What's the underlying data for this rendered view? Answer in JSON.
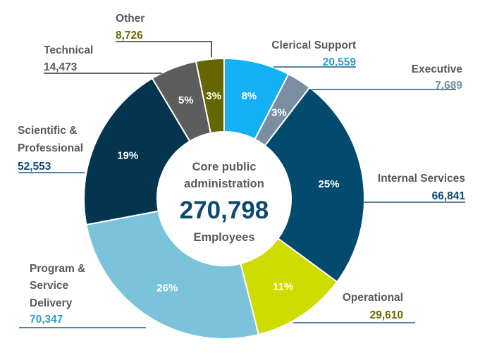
{
  "chart_data": {
    "type": "pie",
    "subtype": "donut",
    "title": "",
    "center": {
      "line1": "Core public",
      "line2": "administration",
      "total": "270,798",
      "line3": "Employees"
    },
    "start": "12 o'clock",
    "direction": "clockwise",
    "slices": [
      {
        "id": "clerical",
        "label": [
          "Clerical Support"
        ],
        "value": 20559,
        "value_text": "20,559",
        "pct_text": "8%",
        "color": "#13b1f4",
        "value_color": "#2f9dc4"
      },
      {
        "id": "executive",
        "label": [
          "Executive"
        ],
        "value": 7689,
        "value_text": "7,689",
        "pct_text": "3%",
        "color": "#7a8da2",
        "value_color": "#7a8da2"
      },
      {
        "id": "internal",
        "label": [
          "Internal Services"
        ],
        "value": 66841,
        "value_text": "66,841",
        "pct_text": "25%",
        "color": "#024b6e",
        "value_color": "#0b4a6e"
      },
      {
        "id": "operational",
        "label": [
          "Operational"
        ],
        "value": 29610,
        "value_text": "29,610",
        "pct_text": "11%",
        "color": "#cfdc00",
        "value_color": "#6b6b00"
      },
      {
        "id": "program",
        "label": [
          "Program &",
          "Service",
          "Delivery"
        ],
        "value": 70347,
        "value_text": "70,347",
        "pct_text": "26%",
        "color": "#7ac3db",
        "value_color": "#2f9dc4"
      },
      {
        "id": "scientific",
        "label": [
          "Scientific &",
          "Professional"
        ],
        "value": 52553,
        "value_text": "52,553",
        "pct_text": "19%",
        "color": "#04354f",
        "value_color": "#0b4a6e"
      },
      {
        "id": "technical",
        "label": [
          "Technical"
        ],
        "value": 14473,
        "value_text": "14,473",
        "pct_text": "5%",
        "color": "#5d5d5d",
        "value_color": "#595959"
      },
      {
        "id": "other",
        "label": [
          "Other"
        ],
        "value": 8726,
        "value_text": "8,726",
        "pct_text": "3%",
        "color": "#666600",
        "value_color": "#6b6b00"
      }
    ],
    "legend": "none (external labels with leader lines)"
  }
}
